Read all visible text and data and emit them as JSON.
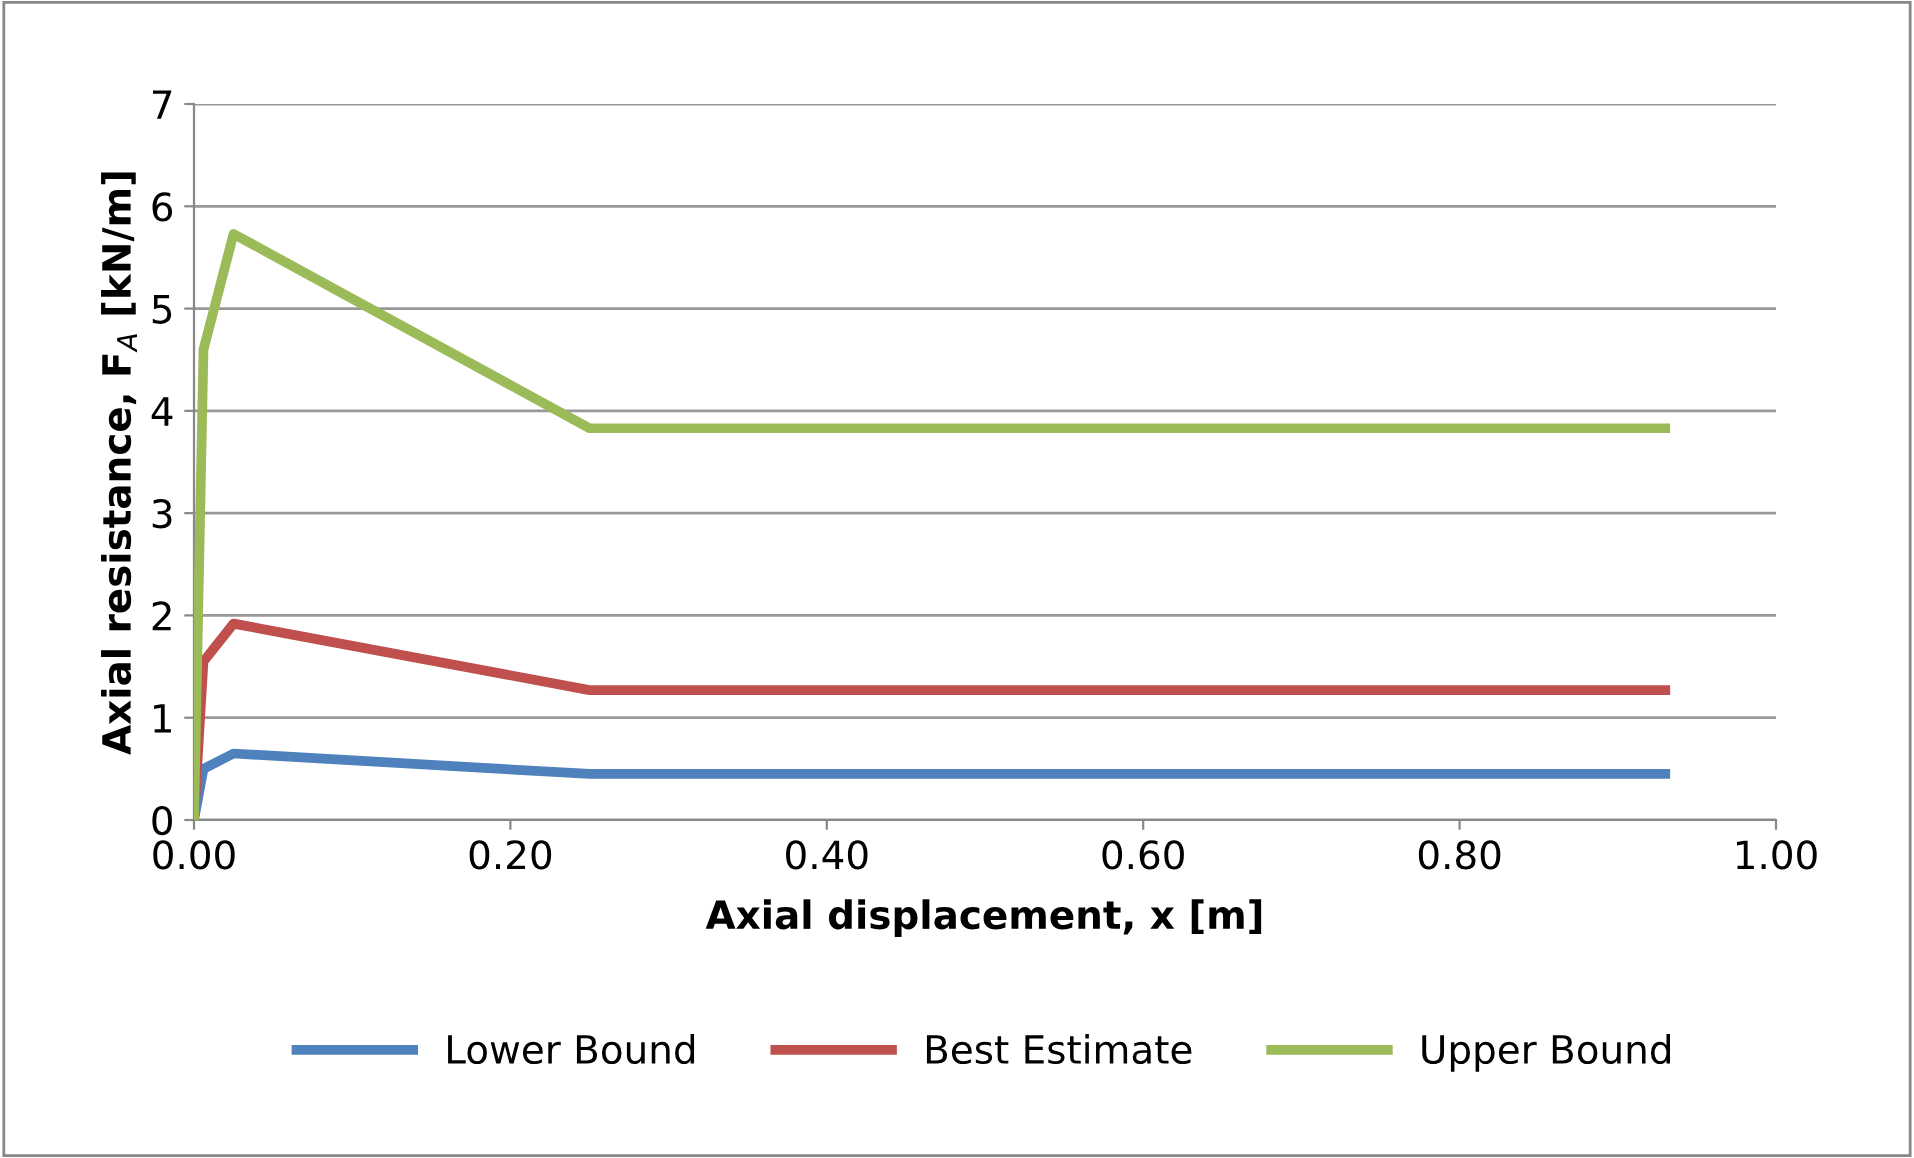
{
  "chart_data": {
    "type": "line",
    "xlabel": "Axial displacement, x [m]",
    "ylabel": "Axial resistance, F$_{A}$ [kN/m]",
    "x": [
      0,
      0.006,
      0.025,
      0.25,
      0.93
    ],
    "series": [
      {
        "name": "Lower Bound",
        "color": "#4f81bd",
        "values": [
          0,
          0.5,
          0.65,
          0.45,
          0.45
        ]
      },
      {
        "name": "Best Estimate",
        "color": "#c0504d",
        "values": [
          0,
          1.55,
          1.92,
          1.27,
          1.27
        ]
      },
      {
        "name": "Upper Bound",
        "color": "#9bbb59",
        "values": [
          0,
          4.6,
          5.73,
          3.83,
          3.83
        ]
      }
    ],
    "xlim": [
      0,
      1
    ],
    "xticks": [
      {
        "value": 0,
        "label": "0.00"
      },
      {
        "value": 0.2,
        "label": "0.20"
      },
      {
        "value": 0.4,
        "label": "0.40"
      },
      {
        "value": 0.6,
        "label": "0.60"
      },
      {
        "value": 0.8,
        "label": "0.80"
      },
      {
        "value": 1,
        "label": "1.00"
      }
    ],
    "ylim": [
      0,
      7
    ],
    "yticks": [
      0,
      1,
      2,
      3,
      4,
      5,
      6,
      7
    ],
    "grid": "y",
    "legend": "bottom",
    "marker": "none",
    "line_style": "solid"
  }
}
